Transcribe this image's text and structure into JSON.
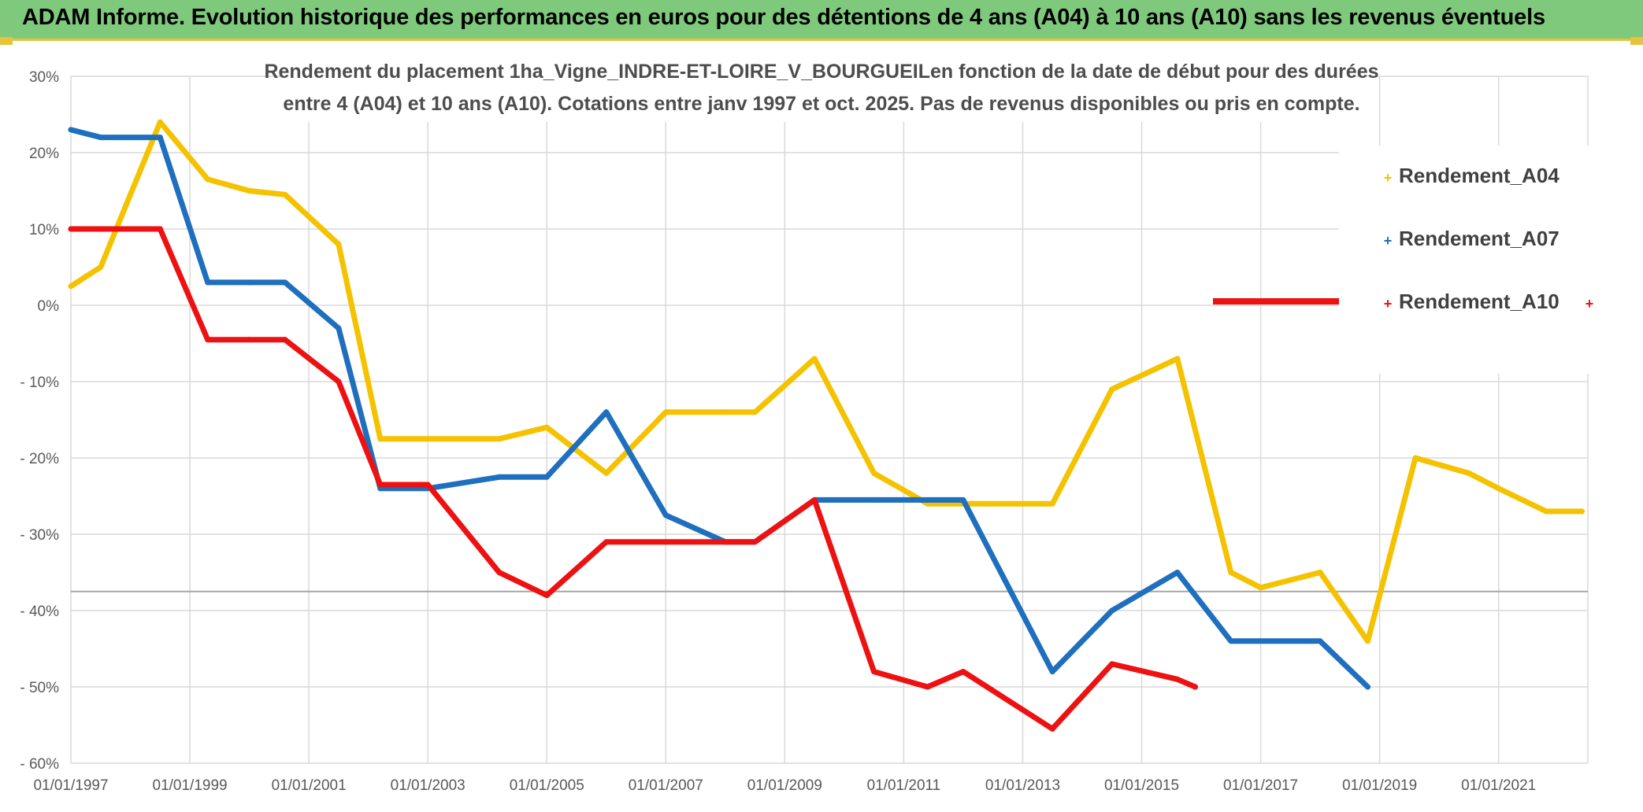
{
  "header": {
    "title": "ADAM Informe. Evolution historique des performances en euros pour des détentions de 4 ans (A04) à 10 ans (A10) sans les revenus éventuels"
  },
  "colors": {
    "banner": "#7ec97c",
    "accent": "#e8c23a",
    "grid": "#d9d9d9",
    "axis_text": "#595959",
    "title_text": "#4d4d4d"
  },
  "chart_data": {
    "type": "line",
    "title_lines": [
      "Rendement du placement 1ha_Vigne_INDRE-ET-LOIRE_V_BOURGUEILen fonction de la date de début pour des durées",
      "entre 4 (A04) et 10 ans (A10). Cotations entre janv 1997 et oct. 2025. Pas de revenus disponibles ou pris en compte."
    ],
    "xlabel": "",
    "ylabel": "",
    "xlim": [
      1997.0,
      2022.5
    ],
    "ylim": [
      -60,
      30
    ],
    "y_ticks": [
      30,
      20,
      10,
      0,
      -10,
      -20,
      -30,
      -40,
      -50,
      -60
    ],
    "y_tick_labels": [
      "30%",
      "20%",
      "10%",
      "0%",
      "- 10%",
      "- 20%",
      "- 30%",
      "- 40%",
      "- 50%",
      "- 60%"
    ],
    "x_ticks": [
      1997,
      1999,
      2001,
      2003,
      2005,
      2007,
      2009,
      2011,
      2013,
      2015,
      2017,
      2019,
      2021
    ],
    "x_tick_labels": [
      "01/01/1997",
      "01/01/1999",
      "01/01/2001",
      "01/01/2003",
      "01/01/2005",
      "01/01/2007",
      "01/01/2009",
      "01/01/2011",
      "01/01/2013",
      "01/01/2015",
      "01/01/2017",
      "01/01/2019",
      "01/01/2021"
    ],
    "reference_line": {
      "y": -37.5
    },
    "legend": {
      "placement": "right",
      "entries": [
        {
          "label": "Rendement_A04",
          "color": "#f5c200"
        },
        {
          "label": "Rendement_A07",
          "color": "#1f6fbf"
        },
        {
          "label": "Rendement_A10",
          "color": "#ee1111"
        }
      ]
    },
    "series": [
      {
        "name": "Rendement_A04",
        "color": "#f5c200",
        "x": [
          1997.0,
          1997.5,
          1998.5,
          1999.3,
          2000.0,
          2000.6,
          2001.5,
          2002.2,
          2003.0,
          2004.2,
          2005.0,
          2006.0,
          2007.0,
          2008.0,
          2008.5,
          2009.5,
          2010.5,
          2011.4,
          2012.0,
          2013.5,
          2014.5,
          2015.6,
          2016.5,
          2017.0,
          2018.0,
          2018.8,
          2019.6,
          2020.5,
          2021.0,
          2021.8,
          2022.4
        ],
        "values": [
          2.5,
          5,
          24,
          16.5,
          15,
          14.5,
          8,
          -17.5,
          -17.5,
          -17.5,
          -16,
          -22,
          -14,
          -14,
          -14,
          -7,
          -22,
          -26,
          -26,
          -26,
          -11,
          -7,
          -35,
          -37,
          -35,
          -44,
          -20,
          -22,
          -24,
          -27,
          -27
        ]
      },
      {
        "name": "Rendement_A07",
        "color": "#1f6fbf",
        "x": [
          1997.0,
          1997.5,
          1998.5,
          1999.3,
          2000.0,
          2000.6,
          2001.5,
          2002.2,
          2003.0,
          2004.2,
          2005.0,
          2006.0,
          2007.0,
          2008.0,
          2008.5,
          2009.5,
          2010.5,
          2011.4,
          2012.0,
          2013.5,
          2014.5,
          2015.6,
          2016.5,
          2017.0,
          2018.0,
          2018.8
        ],
        "values": [
          23,
          22,
          22,
          3,
          3,
          3,
          -3,
          -24,
          -24,
          -22.5,
          -22.5,
          -14,
          -27.5,
          -31,
          -31,
          -25.5,
          -25.5,
          -25.5,
          -25.5,
          -48,
          -40,
          -35,
          -44,
          -44,
          -44,
          -50
        ]
      },
      {
        "name": "Rendement_A10",
        "color": "#ee1111",
        "x": [
          1997.0,
          1997.5,
          1998.5,
          1999.3,
          2000.0,
          2000.6,
          2001.5,
          2002.2,
          2003.0,
          2004.2,
          2005.0,
          2006.0,
          2007.0,
          2008.0,
          2008.5,
          2009.5,
          2010.5,
          2011.4,
          2012.0,
          2013.5,
          2014.5,
          2015.6,
          2015.9
        ],
        "values": [
          10,
          10,
          10,
          -4.5,
          -4.5,
          -4.5,
          -10,
          -23.5,
          -23.5,
          -35,
          -38,
          -31,
          -31,
          -31,
          -31,
          -25.5,
          -48,
          -50,
          -48,
          -55.5,
          -47,
          -49,
          -50
        ]
      }
    ]
  }
}
